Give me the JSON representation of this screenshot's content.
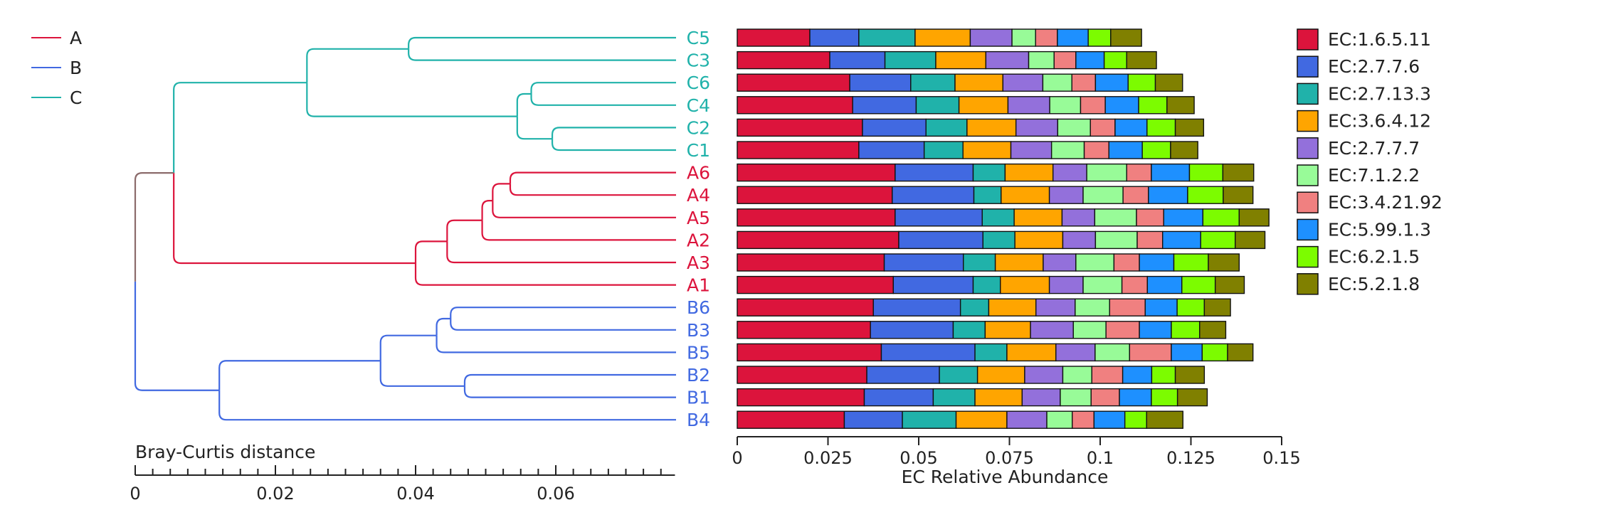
{
  "chart_data": [
    {
      "type": "dendrogram",
      "title": "",
      "xlabel": "Bray-Curtis distance",
      "xlim": [
        0,
        0.077
      ],
      "x_ticks": [
        0,
        0.02,
        0.04,
        0.06
      ],
      "x_tick_labels": [
        "0",
        "0.02",
        "0.04",
        "0.06"
      ],
      "minor_tick_step": 0.0025,
      "group_legend": {
        "placement": "top-left",
        "entries": [
          {
            "name": "A",
            "color": "#DC143C"
          },
          {
            "name": "B",
            "color": "#4169E1"
          },
          {
            "name": "C",
            "color": "#20B2AA"
          }
        ]
      },
      "root_color": "#8B6B6B",
      "leaves": [
        "C5",
        "C3",
        "C6",
        "C4",
        "C2",
        "C1",
        "A6",
        "A4",
        "A5",
        "A2",
        "A3",
        "A1",
        "B6",
        "B3",
        "B5",
        "B2",
        "B1",
        "B4"
      ],
      "leaf_groups": [
        "C",
        "C",
        "C",
        "C",
        "C",
        "C",
        "A",
        "A",
        "A",
        "A",
        "A",
        "A",
        "B",
        "B",
        "B",
        "B",
        "B",
        "B"
      ],
      "merges": [
        {
          "left": "C6",
          "right": "C4",
          "height": 0.0565
        },
        {
          "left": "C2",
          "right": "C1",
          "height": 0.0595
        },
        {
          "left": "C6-C4",
          "right": "C2-C1",
          "height": 0.0545
        },
        {
          "left": "C5",
          "right": "C3",
          "height": 0.039
        },
        {
          "left": "C5-C3",
          "right": "C6-C4-C2-C1",
          "height": 0.0245
        },
        {
          "left": "A6",
          "right": "A4",
          "height": 0.0535
        },
        {
          "left": "A6-A4",
          "right": "A5",
          "height": 0.051
        },
        {
          "left": "A6-A4-A5",
          "right": "A2",
          "height": 0.0495
        },
        {
          "left": "A6-A4-A5-A2",
          "right": "A3",
          "height": 0.0445
        },
        {
          "left": "A6-A4-A5-A2-A3",
          "right": "A1",
          "height": 0.04
        },
        {
          "left": "B6",
          "right": "B3",
          "height": 0.045
        },
        {
          "left": "B6-B3",
          "right": "B5",
          "height": 0.043
        },
        {
          "left": "B2",
          "right": "B1",
          "height": 0.047
        },
        {
          "left": "B6-B3-B5",
          "right": "B2-B1",
          "height": 0.035
        },
        {
          "left": "B6-B3-B5-B2-B1",
          "right": "B4",
          "height": 0.012
        },
        {
          "left": "C",
          "right": "A",
          "height": 0.0055
        },
        {
          "left": "C-A",
          "right": "B",
          "height": 0.0
        }
      ]
    },
    {
      "type": "bar",
      "orientation": "horizontal",
      "stacked": true,
      "title": "",
      "xlabel": "EC Relative Abundance",
      "ylabel": "",
      "xlim": [
        0,
        0.15
      ],
      "x_ticks": [
        0,
        0.025,
        0.05,
        0.075,
        0.1,
        0.125,
        0.15
      ],
      "x_tick_labels": [
        "0",
        "0.025",
        "0.05",
        "0.075",
        "0.1",
        "0.125",
        "0.15"
      ],
      "grid": false,
      "legend": "right",
      "categories": [
        "C5",
        "C3",
        "C6",
        "C4",
        "C2",
        "C1",
        "A6",
        "A4",
        "A5",
        "A2",
        "A3",
        "A1",
        "B6",
        "B3",
        "B5",
        "B2",
        "B1",
        "B4"
      ],
      "series": [
        {
          "name": "EC:1.6.5.11",
          "color": "#DC143C",
          "values": [
            0.02,
            0.0255,
            0.031,
            0.0318,
            0.0345,
            0.0335,
            0.0435,
            0.0427,
            0.0435,
            0.0445,
            0.0405,
            0.043,
            0.0375,
            0.0367,
            0.0397,
            0.0357,
            0.035,
            0.0295
          ]
        },
        {
          "name": "EC:2.7.7.6",
          "color": "#4169E1",
          "values": [
            0.0135,
            0.0152,
            0.0168,
            0.0175,
            0.0175,
            0.018,
            0.0215,
            0.0225,
            0.024,
            0.0232,
            0.0218,
            0.022,
            0.024,
            0.0228,
            0.0258,
            0.02,
            0.019,
            0.016
          ]
        },
        {
          "name": "EC:2.7.13.3",
          "color": "#20B2AA",
          "values": [
            0.0155,
            0.014,
            0.0122,
            0.0118,
            0.0113,
            0.0107,
            0.0088,
            0.0075,
            0.0088,
            0.0088,
            0.0088,
            0.0075,
            0.0078,
            0.0088,
            0.0088,
            0.0105,
            0.0115,
            0.0148
          ]
        },
        {
          "name": "EC:3.6.4.12",
          "color": "#FFA500",
          "values": [
            0.0152,
            0.0138,
            0.0132,
            0.0135,
            0.0135,
            0.0132,
            0.0132,
            0.0133,
            0.0132,
            0.0132,
            0.0132,
            0.0135,
            0.013,
            0.0125,
            0.0135,
            0.013,
            0.013,
            0.014
          ]
        },
        {
          "name": "EC:2.7.7.7",
          "color": "#9370DB",
          "values": [
            0.0115,
            0.0118,
            0.011,
            0.0115,
            0.0115,
            0.0112,
            0.0093,
            0.0093,
            0.009,
            0.009,
            0.009,
            0.0093,
            0.0108,
            0.0118,
            0.0108,
            0.0105,
            0.0105,
            0.011
          ]
        },
        {
          "name": "EC:7.1.2.2",
          "color": "#98FB98",
          "values": [
            0.0065,
            0.007,
            0.008,
            0.0085,
            0.009,
            0.009,
            0.011,
            0.011,
            0.0115,
            0.0115,
            0.0105,
            0.0107,
            0.0095,
            0.009,
            0.0095,
            0.008,
            0.0085,
            0.007
          ]
        },
        {
          "name": "EC:3.4.21.92",
          "color": "#F08080",
          "values": [
            0.006,
            0.006,
            0.0065,
            0.0068,
            0.0068,
            0.0068,
            0.0068,
            0.007,
            0.0075,
            0.007,
            0.007,
            0.007,
            0.0098,
            0.0092,
            0.0115,
            0.0085,
            0.0078,
            0.006
          ]
        },
        {
          "name": "EC:5.99.1.3",
          "color": "#1E90FF",
          "values": [
            0.0085,
            0.0078,
            0.009,
            0.0092,
            0.0088,
            0.0092,
            0.0105,
            0.0108,
            0.0108,
            0.0105,
            0.0095,
            0.0095,
            0.0088,
            0.0088,
            0.0085,
            0.008,
            0.0088,
            0.0085
          ]
        },
        {
          "name": "EC:6.2.1.5",
          "color": "#7CFC00",
          "values": [
            0.0062,
            0.0062,
            0.0075,
            0.0078,
            0.0078,
            0.0078,
            0.0092,
            0.0098,
            0.01,
            0.0095,
            0.0095,
            0.0092,
            0.0075,
            0.0078,
            0.007,
            0.0065,
            0.0072,
            0.006
          ]
        },
        {
          "name": "EC:5.2.1.8",
          "color": "#808000",
          "values": [
            0.0085,
            0.0082,
            0.0075,
            0.0075,
            0.0078,
            0.0075,
            0.0085,
            0.0082,
            0.0082,
            0.0082,
            0.0085,
            0.008,
            0.0072,
            0.0072,
            0.007,
            0.008,
            0.0082,
            0.01
          ]
        }
      ]
    }
  ]
}
